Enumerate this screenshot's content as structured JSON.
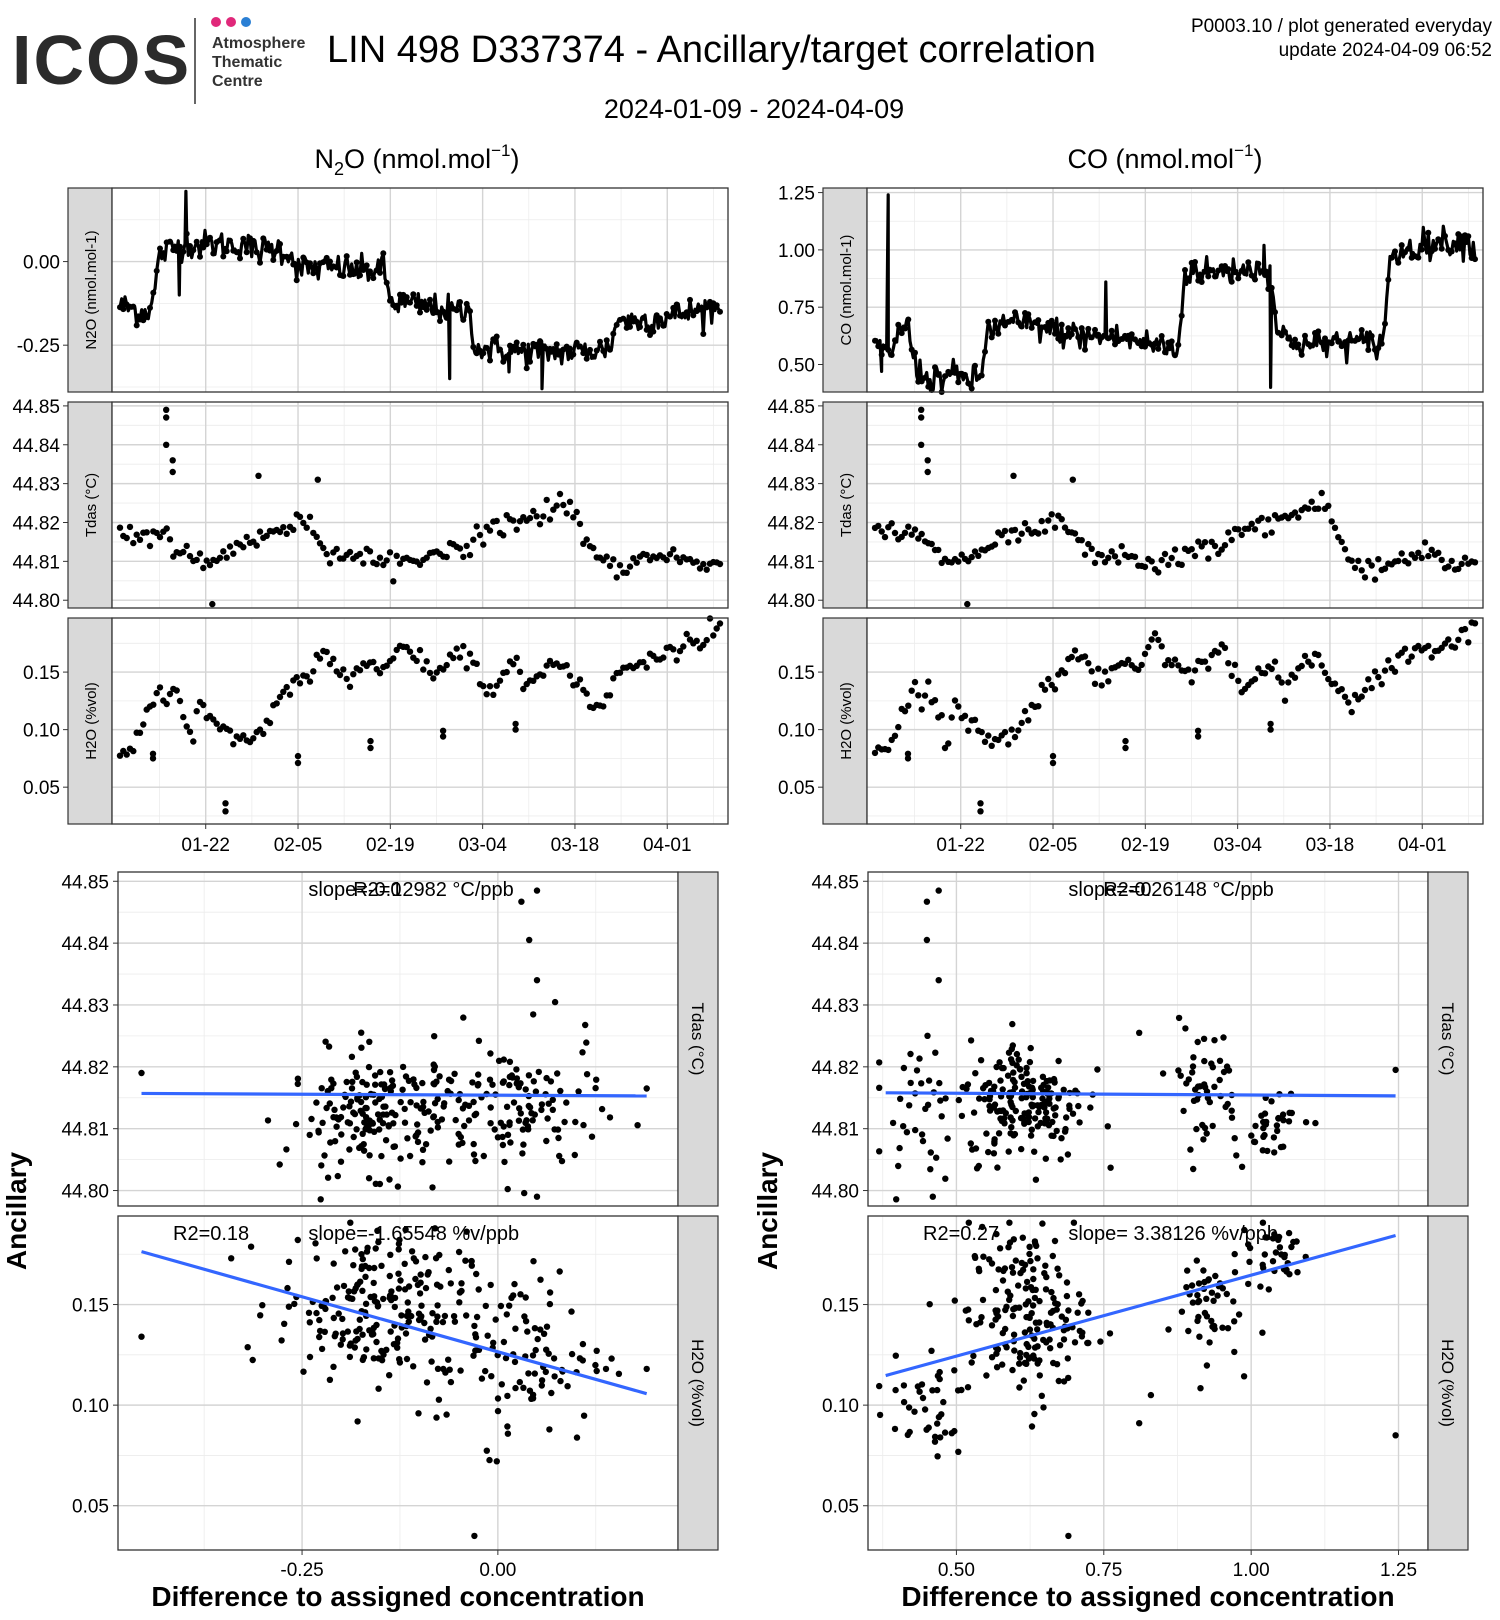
{
  "header": {
    "logo_text": "ICOS",
    "logo_subtitle": [
      "Atmosphere",
      "Thematic",
      "Centre"
    ],
    "title": "LIN 498 D337374 - Ancillary/target correlation",
    "date_range": "2024-01-09 - 2024-04-09",
    "meta_line1": "P0003.10 / plot generated everyday",
    "meta_line2": "update  2024-04-09 06:52"
  },
  "colors": {
    "points": "#000000",
    "regression": "#3366FF",
    "strip": "#d9d9d9",
    "grid_major": "#d4d4d4",
    "grid_minor": "#ececec"
  },
  "columns": [
    {
      "species": "N2O",
      "title_base": "N",
      "title_sub": "2",
      "title_mid": "O (nmol.mol",
      "title_sup": "−1",
      "title_end": ")"
    },
    {
      "species": "CO",
      "title_base": "CO (nmol.mol",
      "title_sub": "",
      "title_mid": "",
      "title_sup": "−1",
      "title_end": ")"
    }
  ],
  "chart_data": [
    {
      "id": "n2o-timeseries",
      "type": "line",
      "column": 0,
      "strip_label": "N2O (nmol.mol-1)",
      "ylim": [
        -0.39,
        0.22
      ],
      "yticks": [
        -0.25,
        0.0
      ],
      "ytick_labels": [
        "-0.25",
        "0.00"
      ],
      "trend": {
        "days": [
          0,
          3,
          4,
          5,
          6,
          9,
          10,
          11,
          12,
          18,
          19,
          20,
          24,
          26,
          27,
          33,
          34,
          37,
          40,
          41,
          52,
          53,
          54,
          61,
          70,
          74,
          76,
          77,
          82,
          89,
          90,
          91
        ],
        "values": [
          -0.13,
          -0.15,
          -0.15,
          -0.12,
          0.02,
          0.05,
          0.06,
          0.05,
          0.05,
          0.05,
          0.06,
          0.03,
          0.04,
          0.02,
          -0.02,
          -0.02,
          -0.02,
          -0.03,
          -0.02,
          -0.12,
          -0.15,
          -0.15,
          -0.26,
          -0.27,
          -0.27,
          -0.26,
          -0.16,
          -0.18,
          -0.17,
          -0.14,
          -0.14,
          -0.14
        ]
      },
      "spikes": [
        {
          "day": 10,
          "value": 0.21
        },
        {
          "day": 9,
          "value": -0.1
        },
        {
          "day": 50,
          "value": -0.35
        },
        {
          "day": 64,
          "value": -0.38
        },
        {
          "day": 59,
          "value": -0.33
        }
      ]
    },
    {
      "id": "n2o-tdas",
      "type": "scatter",
      "column": 0,
      "strip_label": "Tdas (°C)",
      "ylim": [
        44.798,
        44.851
      ],
      "yticks": [
        44.8,
        44.81,
        44.82,
        44.83,
        44.84,
        44.85
      ],
      "ytick_labels": [
        "44.80",
        "44.81",
        "44.82",
        "44.83",
        "44.84",
        "44.85"
      ],
      "trend": {
        "days": [
          0,
          4,
          6,
          10,
          14,
          20,
          24,
          28,
          32,
          36,
          40,
          44,
          48,
          52,
          56,
          60,
          64,
          68,
          72,
          76,
          80,
          84,
          88,
          91
        ],
        "values": [
          44.818,
          44.817,
          44.817,
          44.811,
          44.81,
          44.816,
          44.817,
          44.821,
          44.812,
          44.812,
          44.809,
          44.81,
          44.812,
          44.814,
          44.818,
          44.82,
          44.822,
          44.826,
          44.81,
          44.808,
          44.811,
          44.812,
          44.809,
          44.81
        ]
      },
      "spikes": [
        {
          "day": 7,
          "value": 44.847
        },
        {
          "day": 7,
          "value": 44.849
        },
        {
          "day": 7,
          "value": 44.84
        },
        {
          "day": 8,
          "value": 44.836
        },
        {
          "day": 8,
          "value": 44.833
        },
        {
          "day": 14,
          "value": 44.799
        },
        {
          "day": 21,
          "value": 44.832
        },
        {
          "day": 30,
          "value": 44.831
        }
      ]
    },
    {
      "id": "n2o-h2o",
      "type": "scatter",
      "column": 0,
      "strip_label": "H2O (%vol)",
      "ylim": [
        0.018,
        0.197
      ],
      "yticks": [
        0.05,
        0.1,
        0.15
      ],
      "ytick_labels": [
        "0.05",
        "0.10",
        "0.15"
      ],
      "trend": {
        "days": [
          0,
          2,
          6,
          7,
          8,
          10,
          11,
          12,
          14,
          17,
          21,
          24,
          27,
          31,
          33,
          35,
          37,
          40,
          42,
          45,
          48,
          51,
          53,
          56,
          60,
          62,
          64,
          67,
          72,
          74,
          76,
          78,
          80,
          84,
          88,
          91
        ],
        "values": [
          0.08,
          0.085,
          0.14,
          0.12,
          0.14,
          0.105,
          0.09,
          0.12,
          0.11,
          0.09,
          0.095,
          0.125,
          0.14,
          0.17,
          0.15,
          0.14,
          0.16,
          0.15,
          0.18,
          0.16,
          0.15,
          0.17,
          0.165,
          0.13,
          0.16,
          0.135,
          0.155,
          0.16,
          0.12,
          0.13,
          0.15,
          0.155,
          0.16,
          0.17,
          0.175,
          0.19
        ]
      },
      "spikes": [
        {
          "day": 5,
          "value": 0.075
        },
        {
          "day": 5,
          "value": 0.079
        },
        {
          "day": 16,
          "value": 0.036
        },
        {
          "day": 16,
          "value": 0.029
        },
        {
          "day": 27,
          "value": 0.071
        },
        {
          "day": 27,
          "value": 0.077
        },
        {
          "day": 38,
          "value": 0.084
        },
        {
          "day": 38,
          "value": 0.09
        },
        {
          "day": 49,
          "value": 0.094
        },
        {
          "day": 49,
          "value": 0.099
        },
        {
          "day": 60,
          "value": 0.1
        },
        {
          "day": 60,
          "value": 0.105
        }
      ]
    },
    {
      "id": "co-timeseries",
      "type": "line",
      "column": 1,
      "strip_label": "CO (nmol.mol-1)",
      "ylim": [
        0.38,
        1.27
      ],
      "yticks": [
        0.5,
        0.75,
        1.0,
        1.25
      ],
      "ytick_labels": [
        "0.50",
        "0.75",
        "1.00",
        "1.25"
      ],
      "trend": {
        "days": [
          0,
          2,
          3,
          4,
          5,
          6,
          7,
          8,
          12,
          15,
          16,
          17,
          18,
          20,
          24,
          28,
          32,
          36,
          40,
          44,
          46,
          47,
          48,
          52,
          56,
          58,
          60,
          61,
          66,
          70,
          77,
          78,
          80,
          84,
          88,
          91
        ],
        "values": [
          0.57,
          0.55,
          0.6,
          0.65,
          0.68,
          0.5,
          0.46,
          0.44,
          0.45,
          0.43,
          0.44,
          0.64,
          0.66,
          0.68,
          0.67,
          0.64,
          0.62,
          0.62,
          0.6,
          0.58,
          0.56,
          0.9,
          0.91,
          0.9,
          0.92,
          0.91,
          0.92,
          0.63,
          0.58,
          0.6,
          0.59,
          0.94,
          1.0,
          1.03,
          1.04,
          1.02
        ]
      },
      "spikes": [
        {
          "day": 2,
          "value": 1.24
        },
        {
          "day": 1,
          "value": 0.47
        },
        {
          "day": 35,
          "value": 0.86
        },
        {
          "day": 60,
          "value": 0.4
        },
        {
          "day": 59,
          "value": 1.02
        }
      ]
    },
    {
      "id": "co-tdas",
      "type": "scatter",
      "column": 1,
      "strip_label": "Tdas (°C)",
      "ylim": [
        44.798,
        44.851
      ],
      "yticks": [
        44.8,
        44.81,
        44.82,
        44.83,
        44.84,
        44.85
      ],
      "ytick_labels": [
        "44.80",
        "44.81",
        "44.82",
        "44.83",
        "44.84",
        "44.85"
      ],
      "trend": {
        "days": [
          0,
          4,
          6,
          10,
          14,
          20,
          24,
          28,
          32,
          36,
          40,
          44,
          48,
          52,
          56,
          60,
          64,
          68,
          72,
          76,
          80,
          84,
          88,
          91
        ],
        "values": [
          44.818,
          44.817,
          44.817,
          44.811,
          44.81,
          44.816,
          44.817,
          44.821,
          44.812,
          44.812,
          44.809,
          44.81,
          44.812,
          44.814,
          44.818,
          44.82,
          44.822,
          44.826,
          44.81,
          44.808,
          44.811,
          44.812,
          44.809,
          44.81
        ]
      },
      "spikes": [
        {
          "day": 7,
          "value": 44.847
        },
        {
          "day": 7,
          "value": 44.849
        },
        {
          "day": 7,
          "value": 44.84
        },
        {
          "day": 8,
          "value": 44.836
        },
        {
          "day": 8,
          "value": 44.833
        },
        {
          "day": 14,
          "value": 44.799
        },
        {
          "day": 21,
          "value": 44.832
        },
        {
          "day": 30,
          "value": 44.831
        }
      ]
    },
    {
      "id": "co-h2o",
      "type": "scatter",
      "column": 1,
      "strip_label": "H2O (%vol)",
      "ylim": [
        0.018,
        0.197
      ],
      "yticks": [
        0.05,
        0.1,
        0.15
      ],
      "ytick_labels": [
        "0.05",
        "0.10",
        "0.15"
      ],
      "trend": {
        "days": [
          0,
          2,
          6,
          7,
          8,
          10,
          11,
          12,
          14,
          17,
          21,
          24,
          27,
          31,
          33,
          35,
          37,
          40,
          42,
          45,
          48,
          51,
          53,
          56,
          60,
          62,
          64,
          67,
          72,
          74,
          76,
          78,
          80,
          84,
          88,
          91
        ],
        "values": [
          0.08,
          0.085,
          0.14,
          0.12,
          0.14,
          0.105,
          0.09,
          0.12,
          0.11,
          0.09,
          0.095,
          0.125,
          0.14,
          0.17,
          0.15,
          0.14,
          0.16,
          0.15,
          0.18,
          0.16,
          0.15,
          0.17,
          0.165,
          0.13,
          0.16,
          0.135,
          0.155,
          0.16,
          0.12,
          0.13,
          0.15,
          0.155,
          0.16,
          0.17,
          0.175,
          0.19
        ]
      },
      "spikes": [
        {
          "day": 5,
          "value": 0.075
        },
        {
          "day": 5,
          "value": 0.079
        },
        {
          "day": 16,
          "value": 0.036
        },
        {
          "day": 16,
          "value": 0.029
        },
        {
          "day": 27,
          "value": 0.071
        },
        {
          "day": 27,
          "value": 0.077
        },
        {
          "day": 38,
          "value": 0.084
        },
        {
          "day": 38,
          "value": 0.09
        },
        {
          "day": 49,
          "value": 0.094
        },
        {
          "day": 49,
          "value": 0.099
        },
        {
          "day": 60,
          "value": 0.1
        },
        {
          "day": 60,
          "value": 0.105
        }
      ]
    },
    {
      "id": "n2o-scatter-tdas",
      "type": "scatter",
      "column": 0,
      "strip_label": "Tdas (°C)",
      "xlim": [
        -0.485,
        0.23
      ],
      "xticks": [
        -0.25,
        0.0
      ],
      "xtick_labels": [
        "-0.25",
        "0.00"
      ],
      "ylim": [
        44.7975,
        44.8515
      ],
      "yticks": [
        44.8,
        44.81,
        44.82,
        44.83,
        44.84,
        44.85
      ],
      "ytick_labels": [
        "44.80",
        "44.81",
        "44.82",
        "44.83",
        "44.84",
        "44.85"
      ],
      "r2_label": "R2=0",
      "slope_label": "slope=-0.12982 °C/ppb",
      "regression": {
        "x": [
          -0.455,
          0.19
        ],
        "y": [
          44.8157,
          44.8153
        ]
      },
      "clusters": [
        {
          "cx": -0.15,
          "cy": 44.8125,
          "sx": 0.06,
          "sy": 0.0048,
          "n": 190
        },
        {
          "cx": 0.03,
          "cy": 44.813,
          "sx": 0.05,
          "sy": 0.006,
          "n": 110
        }
      ],
      "extra": [
        {
          "x": -0.455,
          "y": 44.819
        },
        {
          "x": 0.19,
          "y": 44.8165
        },
        {
          "x": 0.04,
          "y": 44.8405
        },
        {
          "x": 0.05,
          "y": 44.834
        },
        {
          "x": 0.05,
          "y": 44.8485
        },
        {
          "x": 0.03,
          "y": 44.8467
        },
        {
          "x": 0.05,
          "y": 44.799
        }
      ]
    },
    {
      "id": "n2o-scatter-h2o",
      "type": "scatter",
      "column": 0,
      "strip_label": "H2O (%vol)",
      "xlim": [
        -0.485,
        0.23
      ],
      "xticks": [
        -0.25,
        0.0
      ],
      "xtick_labels": [
        "-0.25",
        "0.00"
      ],
      "ylim": [
        0.028,
        0.194
      ],
      "yticks": [
        0.05,
        0.1,
        0.15
      ],
      "ytick_labels": [
        "0.05",
        "0.10",
        "0.15"
      ],
      "r2_label": "R2=0.18",
      "slope_label": "slope=-1.65548 %v/ppb",
      "regression": {
        "x": [
          -0.455,
          0.19
        ],
        "y": [
          0.1763,
          0.1057
        ]
      },
      "clusters": [
        {
          "cx": -0.16,
          "cy": 0.15,
          "sx": 0.06,
          "sy": 0.018,
          "n": 200
        },
        {
          "cx": 0.02,
          "cy": 0.125,
          "sx": 0.06,
          "sy": 0.022,
          "n": 110
        }
      ],
      "extra": [
        {
          "x": -0.455,
          "y": 0.134
        },
        {
          "x": 0.19,
          "y": 0.118
        },
        {
          "x": -0.03,
          "y": 0.035
        }
      ]
    },
    {
      "id": "co-scatter-tdas",
      "type": "scatter",
      "column": 1,
      "strip_label": "Tdas (°C)",
      "xlim": [
        0.35,
        1.3
      ],
      "xticks": [
        0.5,
        0.75,
        1.0,
        1.25
      ],
      "xtick_labels": [
        "0.50",
        "0.75",
        "1.00",
        "1.25"
      ],
      "ylim": [
        44.7975,
        44.8515
      ],
      "yticks": [
        44.8,
        44.81,
        44.82,
        44.83,
        44.84,
        44.85
      ],
      "ytick_labels": [
        "44.80",
        "44.81",
        "44.82",
        "44.83",
        "44.84",
        "44.85"
      ],
      "r2_label": "R2=0",
      "slope_label": "slope=-0.26148 °C/ppb",
      "regression": {
        "x": [
          0.38,
          1.245
        ],
        "y": [
          44.8158,
          44.8153
        ]
      },
      "clusters": [
        {
          "cx": 0.62,
          "cy": 44.8145,
          "sx": 0.05,
          "sy": 0.005,
          "n": 180
        },
        {
          "cx": 0.92,
          "cy": 44.817,
          "sx": 0.03,
          "sy": 0.005,
          "n": 50
        },
        {
          "cx": 1.03,
          "cy": 44.811,
          "sx": 0.03,
          "sy": 0.003,
          "n": 35
        },
        {
          "cx": 0.44,
          "cy": 44.813,
          "sx": 0.04,
          "sy": 0.005,
          "n": 40
        }
      ],
      "extra": [
        {
          "x": 1.245,
          "y": 44.8195
        },
        {
          "x": 0.47,
          "y": 44.8485
        },
        {
          "x": 0.45,
          "y": 44.8467
        },
        {
          "x": 0.45,
          "y": 44.8405
        },
        {
          "x": 0.47,
          "y": 44.834
        },
        {
          "x": 0.46,
          "y": 44.799
        },
        {
          "x": 0.81,
          "y": 44.8255
        }
      ]
    },
    {
      "id": "co-scatter-h2o",
      "type": "scatter",
      "column": 1,
      "strip_label": "H2O (%vol)",
      "xlim": [
        0.35,
        1.3
      ],
      "xticks": [
        0.5,
        0.75,
        1.0,
        1.25
      ],
      "xtick_labels": [
        "0.50",
        "0.75",
        "1.00",
        "1.25"
      ],
      "ylim": [
        0.028,
        0.194
      ],
      "yticks": [
        0.05,
        0.1,
        0.15
      ],
      "ytick_labels": [
        "0.05",
        "0.10",
        "0.15"
      ],
      "r2_label": "R2=0.27",
      "slope_label": "slope= 3.38126 %v/ppb",
      "regression": {
        "x": [
          0.38,
          1.245
        ],
        "y": [
          0.1147,
          0.1843
        ]
      },
      "clusters": [
        {
          "cx": 0.62,
          "cy": 0.145,
          "sx": 0.05,
          "sy": 0.022,
          "n": 180
        },
        {
          "cx": 0.92,
          "cy": 0.15,
          "sx": 0.03,
          "sy": 0.014,
          "n": 50
        },
        {
          "cx": 1.04,
          "cy": 0.176,
          "sx": 0.03,
          "sy": 0.008,
          "n": 35
        },
        {
          "cx": 0.44,
          "cy": 0.1,
          "sx": 0.04,
          "sy": 0.014,
          "n": 40
        }
      ],
      "extra": [
        {
          "x": 1.245,
          "y": 0.085
        },
        {
          "x": 0.69,
          "y": 0.035
        },
        {
          "x": 0.81,
          "y": 0.091
        },
        {
          "x": 0.83,
          "y": 0.105
        }
      ]
    }
  ],
  "time_axis": {
    "total_days": 91,
    "tick_days": [
      13,
      27,
      41,
      55,
      69,
      83
    ],
    "tick_labels": [
      "01-22",
      "02-05",
      "02-19",
      "03-04",
      "03-18",
      "04-01"
    ]
  },
  "scatter_axis": {
    "ylabel": "Ancillary",
    "xlabel": "Difference to assigned concentration"
  }
}
